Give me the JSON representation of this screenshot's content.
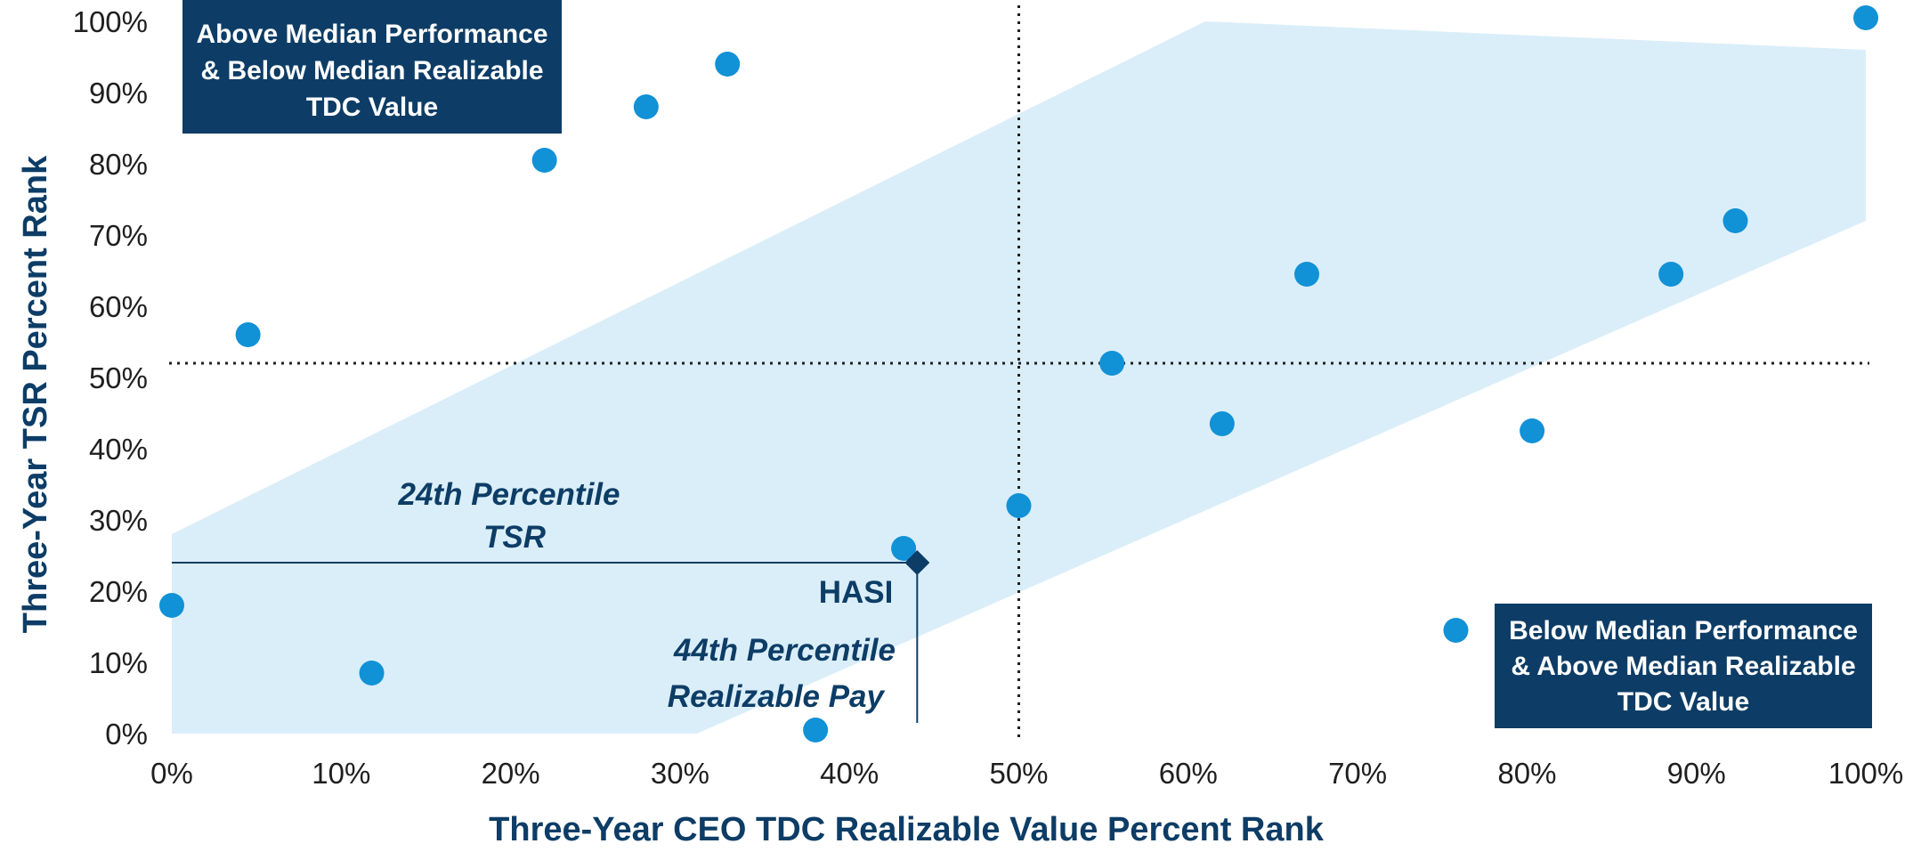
{
  "chart_data": {
    "type": "scatter",
    "xlabel": "Three-Year CEO TDC Realizable Value Percent Rank",
    "ylabel": "Three-Year TSR Percent Rank",
    "xlim": [
      0,
      100
    ],
    "ylim": [
      0,
      100
    ],
    "x_ticks": [
      "0%",
      "10%",
      "20%",
      "30%",
      "40%",
      "50%",
      "60%",
      "70%",
      "80%",
      "90%",
      "100%"
    ],
    "y_ticks": [
      "0%",
      "10%",
      "20%",
      "30%",
      "40%",
      "50%",
      "60%",
      "70%",
      "80%",
      "90%",
      "100%"
    ],
    "median_lines": {
      "x": 50,
      "y": 52
    },
    "alignment_band": {
      "lower_left": [
        [
          0,
          0
        ],
        [
          31,
          0
        ]
      ],
      "upper_left": [
        [
          0,
          28
        ]
      ],
      "upper_right": [
        [
          61,
          100
        ],
        [
          100,
          96
        ]
      ],
      "lower_right": [
        [
          100,
          72
        ]
      ]
    },
    "peers": [
      {
        "x": 0,
        "y": 18
      },
      {
        "x": 4.5,
        "y": 56
      },
      {
        "x": 11.8,
        "y": 8.5
      },
      {
        "x": 22,
        "y": 80.5
      },
      {
        "x": 28,
        "y": 88
      },
      {
        "x": 32.8,
        "y": 94
      },
      {
        "x": 38,
        "y": 0.5
      },
      {
        "x": 43.2,
        "y": 26
      },
      {
        "x": 50,
        "y": 32
      },
      {
        "x": 55.5,
        "y": 52
      },
      {
        "x": 62,
        "y": 43.5
      },
      {
        "x": 67,
        "y": 64.5
      },
      {
        "x": 75.8,
        "y": 14.5
      },
      {
        "x": 80.3,
        "y": 42.5
      },
      {
        "x": 88.5,
        "y": 64.5
      },
      {
        "x": 92.3,
        "y": 72
      },
      {
        "x": 100,
        "y": 100.5
      }
    ],
    "company": {
      "name": "HASI",
      "x": 44,
      "y": 24
    },
    "callouts": {
      "tsr": [
        "24th Percentile",
        "TSR"
      ],
      "pay": [
        "44th Percentile",
        "Realizable Pay"
      ]
    },
    "quadrant_labels": {
      "top_left": [
        "Above Median Performance",
        "& Below Median Realizable",
        "TDC Value"
      ],
      "bottom_right": [
        "Below Median Performance",
        "& Above Median Realizable",
        "TDC Value"
      ]
    },
    "colors": {
      "band": "#daeef9",
      "peer": "#1191d6",
      "company": "#0d3d66",
      "navy": "#0d3d66",
      "median_line": "#1f1f1f"
    }
  }
}
